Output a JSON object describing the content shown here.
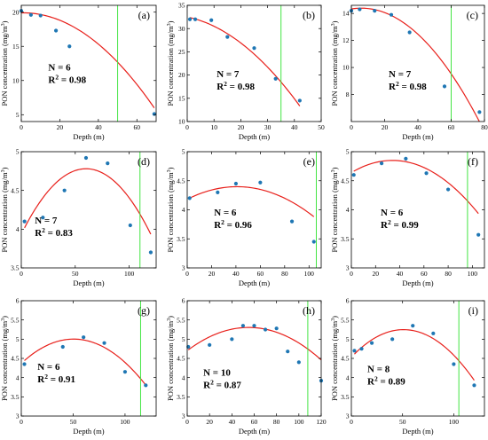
{
  "chart_data": [
    {
      "type": "scatter",
      "label": "(a)",
      "xlabel": "Depth (m)",
      "ylabel": "PON concentration (mg/m3)",
      "xlim": [
        0,
        70
      ],
      "ylim": [
        4,
        21
      ],
      "xticks": [
        0,
        20,
        40,
        60
      ],
      "yticks": [
        5,
        10,
        15,
        20
      ],
      "points": [
        [
          0,
          20.2
        ],
        [
          5,
          19.6
        ],
        [
          10,
          19.5
        ],
        [
          18,
          17.3
        ],
        [
          25,
          15
        ],
        [
          69,
          5.1
        ]
      ],
      "fit": [
        -0.003003,
        0.0057,
        19.9
      ],
      "vline": 50,
      "N": "N = 6",
      "R2": "0.98"
    },
    {
      "type": "scatter",
      "label": "(b)",
      "xlabel": "Depth (m)",
      "ylabel": "PON concentration (mg/m3)",
      "xlim": [
        0,
        50
      ],
      "ylim": [
        10,
        35
      ],
      "xticks": [
        0,
        10,
        20,
        30,
        40,
        50
      ],
      "yticks": [
        10,
        15,
        20,
        25,
        30,
        35
      ],
      "points": [
        [
          1,
          32
        ],
        [
          3,
          32
        ],
        [
          9,
          31.8
        ],
        [
          15,
          28.2
        ],
        [
          25,
          25.8
        ],
        [
          33,
          19.2
        ],
        [
          42,
          14.5
        ]
      ],
      "fit": [
        -0.008,
        -0.12,
        32.5
      ],
      "vline": 35,
      "N": "N = 7",
      "R2": "0.98"
    },
    {
      "type": "scatter",
      "label": "(c)",
      "xlabel": "Depth (m)",
      "ylabel": "PON concentration (mg/m3)",
      "xlim": [
        0,
        80
      ],
      "ylim": [
        6,
        14.6
      ],
      "xticks": [
        0,
        20,
        40,
        60,
        80
      ],
      "yticks": [
        8,
        10,
        12,
        14
      ],
      "points": [
        [
          0,
          14.2
        ],
        [
          5,
          14.3
        ],
        [
          14,
          14.2
        ],
        [
          24,
          13.9
        ],
        [
          35,
          12.6
        ],
        [
          56,
          8.6
        ],
        [
          77,
          6.7
        ]
      ],
      "fit": [
        -0.001667,
        0.02,
        14.33
      ],
      "vline": 60,
      "N": "N = 7",
      "R2": "0.98"
    },
    {
      "type": "scatter",
      "label": "(d)",
      "xlabel": "Depth (m)",
      "ylabel": "PON concentration (mg/m3)",
      "xlim": [
        0,
        125
      ],
      "ylim": [
        3.5,
        5
      ],
      "xticks": [
        0,
        50,
        100
      ],
      "yticks": [
        3.5,
        4,
        4.5,
        5
      ],
      "points": [
        [
          3,
          4.1
        ],
        [
          20,
          4.15
        ],
        [
          40,
          4.5
        ],
        [
          60,
          4.92
        ],
        [
          80,
          4.85
        ],
        [
          101,
          4.05
        ],
        [
          120,
          3.7
        ]
      ],
      "fit": [
        -0.0002347,
        0.028164,
        3.935
      ],
      "vline": 110,
      "N": "N = 7",
      "R2": "0.83"
    },
    {
      "type": "scatter",
      "label": "(e)",
      "xlabel": "Depth (m)",
      "ylabel": "PON concentration (mg/m3)",
      "xlim": [
        0,
        110
      ],
      "ylim": [
        3,
        5
      ],
      "xticks": [
        0,
        20,
        40,
        60,
        80,
        100
      ],
      "yticks": [
        3,
        3.5,
        4,
        4.5,
        5
      ],
      "points": [
        [
          2,
          4.2
        ],
        [
          25,
          4.3
        ],
        [
          40,
          4.45
        ],
        [
          60,
          4.47
        ],
        [
          86,
          3.8
        ],
        [
          104,
          3.45
        ]
      ],
      "fit": [
        -0.00013,
        0.01064,
        4.18
      ],
      "vline": 106,
      "N": "N = 6",
      "R2": "0.96"
    },
    {
      "type": "scatter",
      "label": "(f)",
      "xlabel": "Depth (m)",
      "ylabel": "PON concentration (mg/m3)",
      "xlim": [
        0,
        110
      ],
      "ylim": [
        3,
        5
      ],
      "xticks": [
        0,
        20,
        40,
        60,
        80,
        100
      ],
      "yticks": [
        3,
        3.5,
        4,
        4.5,
        5
      ],
      "points": [
        [
          2,
          4.6
        ],
        [
          25,
          4.8
        ],
        [
          45,
          4.88
        ],
        [
          62,
          4.63
        ],
        [
          80,
          4.35
        ],
        [
          105,
          3.57
        ]
      ],
      "fit": [
        -0.0001815,
        0.012342,
        4.64
      ],
      "vline": 96,
      "N": "N = 6",
      "R2": "0.99"
    },
    {
      "type": "scatter",
      "label": "(g)",
      "xlabel": "Depth (m)",
      "ylabel": "PON concentration (mg/m3)",
      "xlim": [
        0,
        130
      ],
      "ylim": [
        3,
        6
      ],
      "xticks": [
        0,
        50,
        100
      ],
      "yticks": [
        3,
        3.5,
        4,
        4.5,
        5,
        5.5,
        6
      ],
      "points": [
        [
          3,
          4.35
        ],
        [
          40,
          4.8
        ],
        [
          60,
          5.05
        ],
        [
          80,
          4.9
        ],
        [
          100,
          4.15
        ],
        [
          120,
          3.8
        ]
      ],
      "fit": [
        -0.000248,
        0.02504,
        4.37
      ],
      "vline": 115,
      "N": "N = 6",
      "R2": "0.91"
    },
    {
      "type": "scatter",
      "label": "(h)",
      "xlabel": "Depth (m)",
      "ylabel": "PON concentration (mg/m3)",
      "xlim": [
        0,
        120
      ],
      "ylim": [
        3,
        6
      ],
      "xticks": [
        0,
        20,
        40,
        60,
        80,
        100,
        120
      ],
      "yticks": [
        3,
        3.5,
        4,
        4.5,
        5,
        5.5,
        6
      ],
      "points": [
        [
          1,
          4.8
        ],
        [
          20,
          4.85
        ],
        [
          40,
          5
        ],
        [
          50,
          5.35
        ],
        [
          60,
          5.35
        ],
        [
          70,
          5.25
        ],
        [
          80,
          5.28
        ],
        [
          90,
          4.68
        ],
        [
          100,
          4.4
        ],
        [
          120,
          3.92
        ]
      ],
      "fit": [
        -0.0002,
        0.022,
        4.7
      ],
      "vline": 108,
      "N": "N = 10",
      "R2": "0.87"
    },
    {
      "type": "scatter",
      "label": "(i)",
      "xlabel": "Depth (m)",
      "ylabel": "PON concentration (mg/m3)",
      "xlim": [
        0,
        130
      ],
      "ylim": [
        3,
        6
      ],
      "xticks": [
        0,
        50,
        100
      ],
      "yticks": [
        3,
        3.5,
        4,
        4.5,
        5,
        5.5,
        6
      ],
      "points": [
        [
          3,
          4.7
        ],
        [
          10,
          4.75
        ],
        [
          20,
          4.9
        ],
        [
          40,
          5
        ],
        [
          60,
          5.35
        ],
        [
          80,
          5.15
        ],
        [
          100,
          4.35
        ],
        [
          120,
          3.8
        ]
      ],
      "fit": [
        -0.0002765,
        0.02818,
        4.53
      ],
      "vline": 105,
      "N": "N = 8",
      "R2": "0.89"
    }
  ],
  "colors": {
    "points": "#1f77b4",
    "fit": "#e8201b",
    "vline": "#43e543",
    "axes": "#000000"
  }
}
